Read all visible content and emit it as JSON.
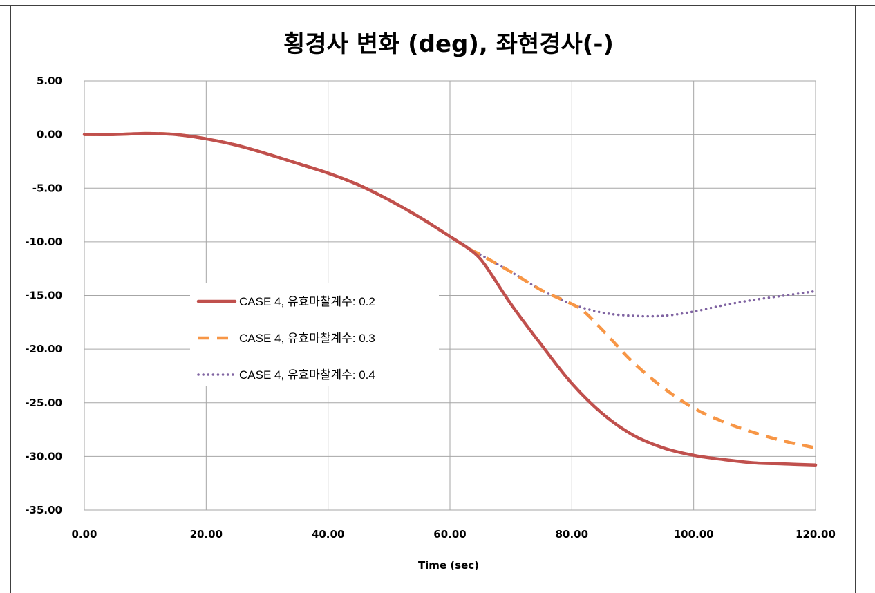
{
  "chart_data": {
    "type": "line",
    "title": "횡경사 변화 (deg), 좌현경사(-)",
    "xlabel": "Time (sec)",
    "ylabel": "",
    "xlim": [
      0,
      120
    ],
    "ylim": [
      -35,
      5
    ],
    "x_ticks": [
      "0.00",
      "20.00",
      "40.00",
      "60.00",
      "80.00",
      "100.00",
      "120.00"
    ],
    "y_ticks": [
      "5.00",
      "0.00",
      "-5.00",
      "-10.00",
      "-15.00",
      "-20.00",
      "-25.00",
      "-30.00",
      "-35.00"
    ],
    "grid": true,
    "legend_position": "left-middle",
    "series": [
      {
        "name": "CASE 4, 유효마찰계수: 0.2",
        "color": "#c0504d",
        "style": "solid",
        "x": [
          0,
          5,
          10,
          15,
          20,
          25,
          30,
          35,
          40,
          45,
          50,
          55,
          60,
          63,
          65,
          67,
          70,
          75,
          80,
          85,
          90,
          95,
          100,
          105,
          110,
          115,
          120
        ],
        "y": [
          0,
          0,
          0.1,
          0,
          -0.4,
          -1.0,
          -1.8,
          -2.7,
          -3.6,
          -4.7,
          -6.1,
          -7.7,
          -9.5,
          -10.6,
          -11.6,
          -13.2,
          -15.8,
          -19.6,
          -23.2,
          -26.0,
          -28.0,
          -29.2,
          -29.9,
          -30.3,
          -30.6,
          -30.7,
          -30.8
        ]
      },
      {
        "name": "CASE 4, 유효마찰계수: 0.3",
        "color": "#f79646",
        "style": "dashed",
        "x": [
          0,
          5,
          10,
          15,
          20,
          25,
          30,
          35,
          40,
          45,
          50,
          55,
          60,
          63,
          65,
          70,
          75,
          80,
          82,
          85,
          90,
          95,
          100,
          105,
          110,
          115,
          120
        ],
        "y": [
          0,
          0,
          0.1,
          0,
          -0.4,
          -1.0,
          -1.8,
          -2.7,
          -3.6,
          -4.7,
          -6.1,
          -7.7,
          -9.5,
          -10.6,
          -11.2,
          -12.8,
          -14.5,
          -15.8,
          -16.5,
          -18.2,
          -21.2,
          -23.6,
          -25.5,
          -26.8,
          -27.8,
          -28.6,
          -29.2
        ]
      },
      {
        "name": "CASE 4, 유효마찰계수: 0.4",
        "color": "#8064a2",
        "style": "dotted",
        "x": [
          0,
          5,
          10,
          15,
          20,
          25,
          30,
          35,
          40,
          45,
          50,
          55,
          60,
          63,
          65,
          70,
          75,
          80,
          85,
          90,
          95,
          100,
          105,
          110,
          115,
          120
        ],
        "y": [
          0,
          0,
          0.1,
          0,
          -0.4,
          -1.0,
          -1.8,
          -2.7,
          -3.6,
          -4.7,
          -6.1,
          -7.7,
          -9.5,
          -10.6,
          -11.2,
          -12.8,
          -14.5,
          -15.8,
          -16.6,
          -16.9,
          -16.9,
          -16.5,
          -15.9,
          -15.4,
          -15.0,
          -14.6
        ]
      }
    ]
  }
}
